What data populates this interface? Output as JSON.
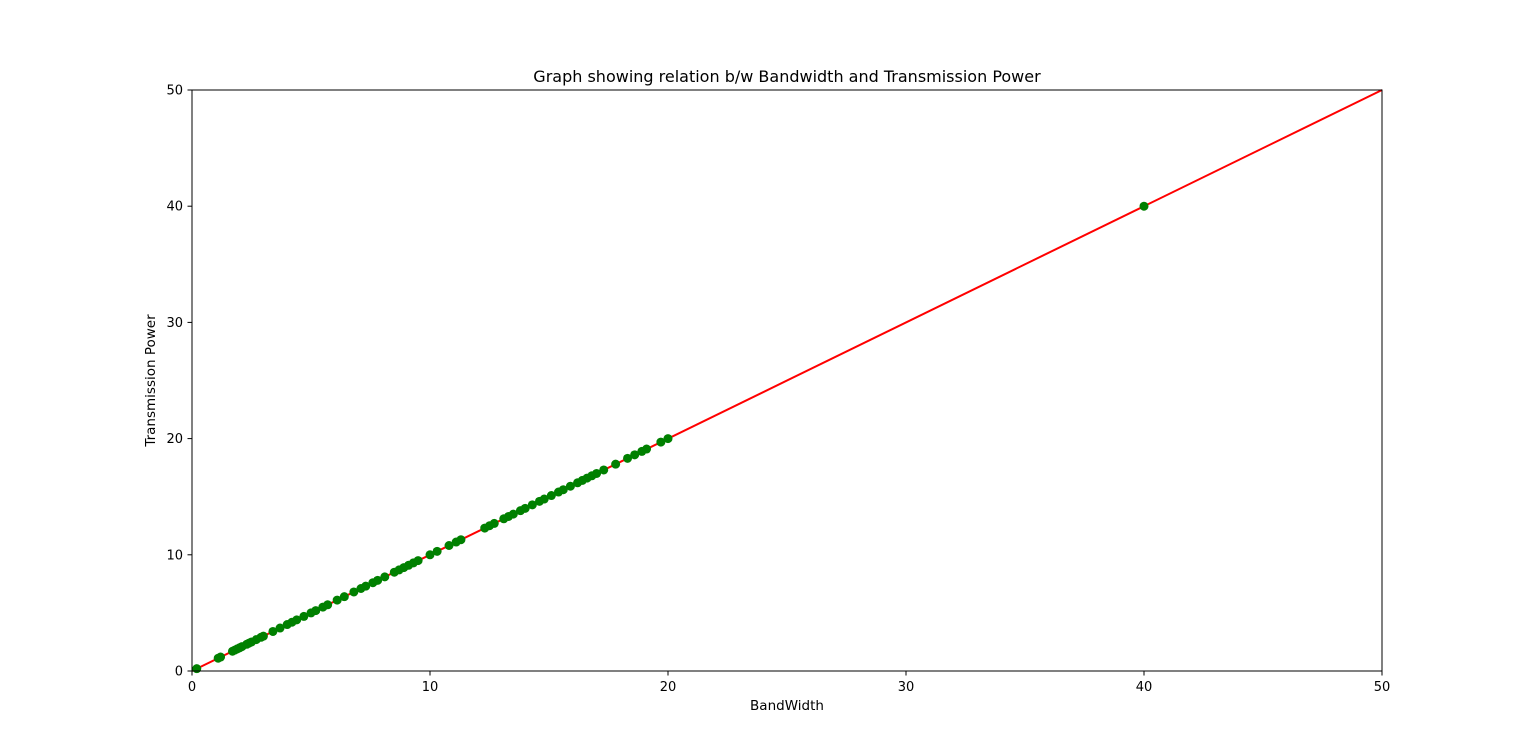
{
  "chart_data": {
    "type": "scatter",
    "title": "Graph showing relation b/w Bandwidth and Transmission Power",
    "xlabel": "BandWidth",
    "ylabel": "Transmission Power",
    "xlim": [
      0,
      50
    ],
    "ylim": [
      0,
      50
    ],
    "xticks": [
      0,
      10,
      20,
      30,
      40,
      50
    ],
    "yticks": [
      0,
      10,
      20,
      30,
      40,
      50
    ],
    "grid": false,
    "line": {
      "color": "#ff0000",
      "x": [
        0,
        50
      ],
      "y": [
        0,
        50
      ]
    },
    "marker_color": "#008000",
    "points": [
      [
        0.2,
        0.2
      ],
      [
        1.1,
        1.1
      ],
      [
        1.2,
        1.2
      ],
      [
        1.7,
        1.7
      ],
      [
        1.8,
        1.8
      ],
      [
        1.9,
        1.9
      ],
      [
        2.0,
        2.0
      ],
      [
        2.1,
        2.1
      ],
      [
        2.3,
        2.3
      ],
      [
        2.4,
        2.4
      ],
      [
        2.5,
        2.5
      ],
      [
        2.7,
        2.7
      ],
      [
        2.9,
        2.9
      ],
      [
        3.0,
        3.0
      ],
      [
        3.4,
        3.4
      ],
      [
        3.7,
        3.7
      ],
      [
        4.0,
        4.0
      ],
      [
        4.2,
        4.2
      ],
      [
        4.4,
        4.4
      ],
      [
        4.7,
        4.7
      ],
      [
        5.0,
        5.0
      ],
      [
        5.2,
        5.2
      ],
      [
        5.5,
        5.5
      ],
      [
        5.7,
        5.7
      ],
      [
        6.1,
        6.1
      ],
      [
        6.4,
        6.4
      ],
      [
        6.8,
        6.8
      ],
      [
        7.1,
        7.1
      ],
      [
        7.3,
        7.3
      ],
      [
        7.6,
        7.6
      ],
      [
        7.8,
        7.8
      ],
      [
        8.1,
        8.1
      ],
      [
        8.5,
        8.5
      ],
      [
        8.7,
        8.7
      ],
      [
        8.9,
        8.9
      ],
      [
        9.1,
        9.1
      ],
      [
        9.3,
        9.3
      ],
      [
        9.5,
        9.5
      ],
      [
        10.0,
        10.0
      ],
      [
        10.3,
        10.3
      ],
      [
        10.8,
        10.8
      ],
      [
        11.1,
        11.1
      ],
      [
        11.3,
        11.3
      ],
      [
        12.3,
        12.3
      ],
      [
        12.5,
        12.5
      ],
      [
        12.7,
        12.7
      ],
      [
        13.1,
        13.1
      ],
      [
        13.3,
        13.3
      ],
      [
        13.5,
        13.5
      ],
      [
        13.8,
        13.8
      ],
      [
        14.0,
        14.0
      ],
      [
        14.3,
        14.3
      ],
      [
        14.6,
        14.6
      ],
      [
        14.8,
        14.8
      ],
      [
        15.1,
        15.1
      ],
      [
        15.4,
        15.4
      ],
      [
        15.6,
        15.6
      ],
      [
        15.9,
        15.9
      ],
      [
        16.2,
        16.2
      ],
      [
        16.4,
        16.4
      ],
      [
        16.6,
        16.6
      ],
      [
        16.8,
        16.8
      ],
      [
        17.0,
        17.0
      ],
      [
        17.3,
        17.3
      ],
      [
        17.8,
        17.8
      ],
      [
        18.3,
        18.3
      ],
      [
        18.6,
        18.6
      ],
      [
        18.9,
        18.9
      ],
      [
        19.1,
        19.1
      ],
      [
        19.7,
        19.7
      ],
      [
        20.0,
        20.0
      ],
      [
        40.0,
        40.0
      ]
    ]
  }
}
